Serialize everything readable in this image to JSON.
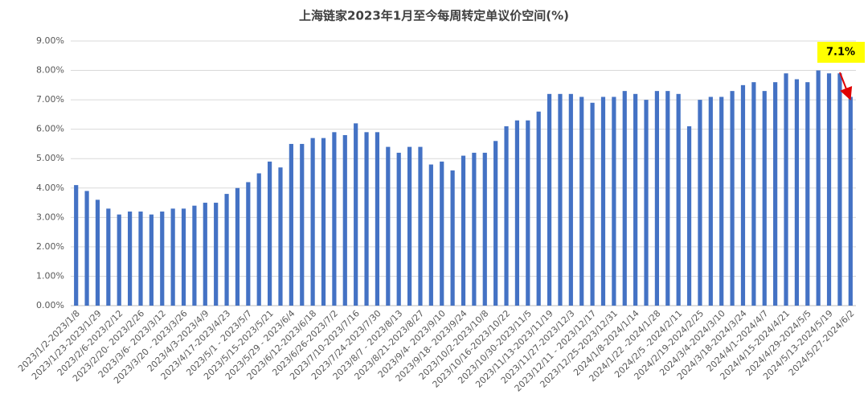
{
  "chart_data": {
    "type": "bar",
    "title": "上海链家2023年1月至今每周转定单议价空间(%)",
    "categories": [
      "2023/1/2-2023/1/8",
      null,
      "2023/1/23-2023/1/29",
      null,
      "2023/2/6-2023/2/12",
      null,
      "2023/2/20- 2023/2/26",
      null,
      "2023/3/6- 2023/3/12",
      null,
      "2023/3/20 - 2023/3/26",
      null,
      "2023/4/3-2023/4/9",
      null,
      "2023/4/17-2023/4/23",
      null,
      "2023/5/1 - 2023/5/7",
      null,
      "2023/5/15-2023/5/21",
      null,
      "2023/5/29 - 2023/6/4",
      null,
      "2023/6/12-2023/6/18",
      null,
      "2023/6/26-2023/7/2",
      null,
      "2023/7/10-2023/7/16",
      null,
      "2023/7/24-2023/7/30",
      null,
      "2023/8/7 - 2023/8/13",
      null,
      "2023/8/21-2023/8/27",
      null,
      "2023/9/4- 2023/9/10",
      null,
      "2023/9/18- 2023/9/24",
      null,
      "2023/10/2-2023/10/8",
      null,
      "2023/10/16-2023/10/22",
      null,
      "2023/10/30-2023/11/5",
      null,
      "2023/11/13-2023/11/19",
      null,
      "2023/11/27-2023/12/3",
      null,
      "2023/12/11 - 2023/12/17",
      null,
      "2023/12/25-2023/12/31",
      null,
      "2024/1/8-2024/1/14",
      null,
      "2024/1/22 -2024/1/28",
      null,
      "2024/2/5 -2024/2/11",
      null,
      "2024/2/19-2024/2/25",
      null,
      "2024/3/4-2024/3/10",
      null,
      "2024/3/18-2024/3/24",
      null,
      "2024/4/1-2024/4/7",
      null,
      "2024/4/15-2024/4/21",
      null,
      "2024/4/29-2024/5/5",
      null,
      "2024/5/13-2024/5/19",
      null,
      "2024/5/27-2024/6/2"
    ],
    "values": [
      4.1,
      3.9,
      3.6,
      3.3,
      3.1,
      3.2,
      3.2,
      3.1,
      3.2,
      3.3,
      3.3,
      3.4,
      3.5,
      3.5,
      3.8,
      4.0,
      4.2,
      4.5,
      4.9,
      4.7,
      5.5,
      5.5,
      5.7,
      5.7,
      5.9,
      5.8,
      6.2,
      5.9,
      5.9,
      5.4,
      5.2,
      5.4,
      5.4,
      4.8,
      4.9,
      4.6,
      5.1,
      5.2,
      5.2,
      5.6,
      6.1,
      6.3,
      6.3,
      6.6,
      7.2,
      7.2,
      7.2,
      7.1,
      6.9,
      7.1,
      7.1,
      7.3,
      7.2,
      7.0,
      7.3,
      7.3,
      7.2,
      6.1,
      7.0,
      7.1,
      7.1,
      7.3,
      7.5,
      7.6,
      7.3,
      7.6,
      7.9,
      7.7,
      7.6,
      8.0,
      7.9,
      7.9,
      7.1
    ],
    "color": "#4472c4",
    "ylim": [
      0,
      9
    ],
    "yticks": [
      {
        "value": 0,
        "label": "0.00%"
      },
      {
        "value": 1,
        "label": "1.00%"
      },
      {
        "value": 2,
        "label": "2.00%"
      },
      {
        "value": 3,
        "label": "3.00%"
      },
      {
        "value": 4,
        "label": "4.00%"
      },
      {
        "value": 5,
        "label": "5.00%"
      },
      {
        "value": 6,
        "label": "6.00%"
      },
      {
        "value": 7,
        "label": "7.00%"
      },
      {
        "value": 8,
        "label": "8.00%"
      },
      {
        "value": 9,
        "label": "9.00%"
      }
    ],
    "grid": true,
    "annotations": [
      "7.1%"
    ]
  }
}
